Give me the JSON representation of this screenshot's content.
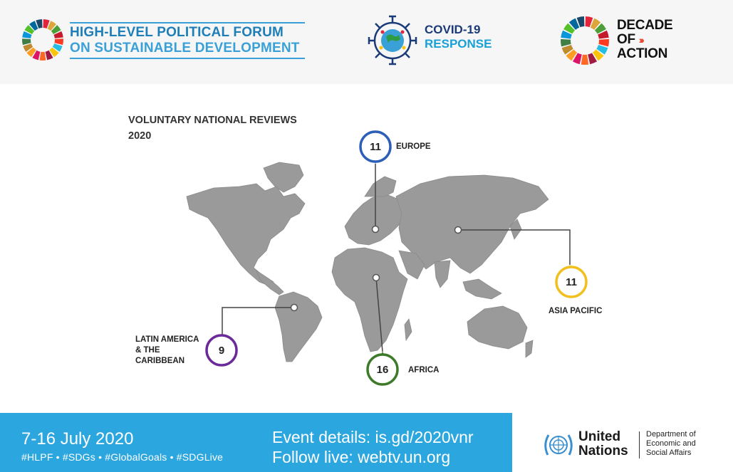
{
  "header": {
    "hlpf_line1": "HIGH-LEVEL POLITICAL FORUM",
    "hlpf_line2": "ON SUSTAINABLE DEVELOPMENT",
    "covid_line1": "COVID-19",
    "covid_line2": "RESPONSE",
    "decade_line1": "DECADE",
    "decade_line2": "OF",
    "decade_arrows": "›››",
    "decade_line3": "ACTION"
  },
  "map": {
    "title_line1": "VOLUNTARY NATIONAL REVIEWS",
    "title_line2": "2020",
    "regions": [
      {
        "name": "EUROPE",
        "count": "11",
        "color": "#2e5fb8"
      },
      {
        "name": "ASIA PACIFIC",
        "count": "11",
        "color": "#f2c01e"
      },
      {
        "name_lines": [
          "LATIN AMERICA",
          "& THE",
          "CARIBBEAN"
        ],
        "count": "9",
        "color": "#6a2a9a"
      },
      {
        "name": "AFRICA",
        "count": "16",
        "color": "#3d7a2a"
      }
    ]
  },
  "footer": {
    "dates": "7-16 July 2020",
    "hashtags": "#HLPF  •  #SDGs   •   #GlobalGoals  •  #SDGLive",
    "event_details": "Event details: is.gd/2020vnr",
    "follow_live": "Follow live: webtv.un.org",
    "un_name_line1": "United",
    "un_name_line2": "Nations",
    "dept_line1": "Department of",
    "dept_line2": "Economic and",
    "dept_line3": "Social Affairs"
  },
  "colors": {
    "footer_blue": "#2ba6df",
    "hlpf_blue": "#1e7fb8",
    "map_grey": "#9a9a9a"
  }
}
